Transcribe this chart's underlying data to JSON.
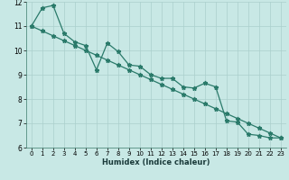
{
  "xlabel": "Humidex (Indice chaleur)",
  "line1_y": [
    11.0,
    11.75,
    11.85,
    10.7,
    10.35,
    10.2,
    9.2,
    10.3,
    9.95,
    9.4,
    9.35,
    9.0,
    8.85,
    8.85,
    8.5,
    8.45,
    8.65,
    8.5,
    7.1,
    7.05,
    6.55,
    6.5,
    6.4,
    6.4
  ],
  "line2_y": [
    11.0,
    10.8,
    10.6,
    10.4,
    10.2,
    10.0,
    9.8,
    9.6,
    9.4,
    9.2,
    9.0,
    8.8,
    8.6,
    8.4,
    8.2,
    8.0,
    7.8,
    7.6,
    7.4,
    7.2,
    7.0,
    6.8,
    6.6,
    6.4
  ],
  "line_color": "#2a7a6a",
  "bg_color": "#c8e8e5",
  "grid_color": "#aacfcc",
  "xlim": [
    -0.5,
    23.5
  ],
  "ylim": [
    6,
    12
  ],
  "yticks": [
    6,
    7,
    8,
    9,
    10,
    11,
    12
  ],
  "xticks": [
    0,
    1,
    2,
    3,
    4,
    5,
    6,
    7,
    8,
    9,
    10,
    11,
    12,
    13,
    14,
    15,
    16,
    17,
    18,
    19,
    20,
    21,
    22,
    23
  ]
}
